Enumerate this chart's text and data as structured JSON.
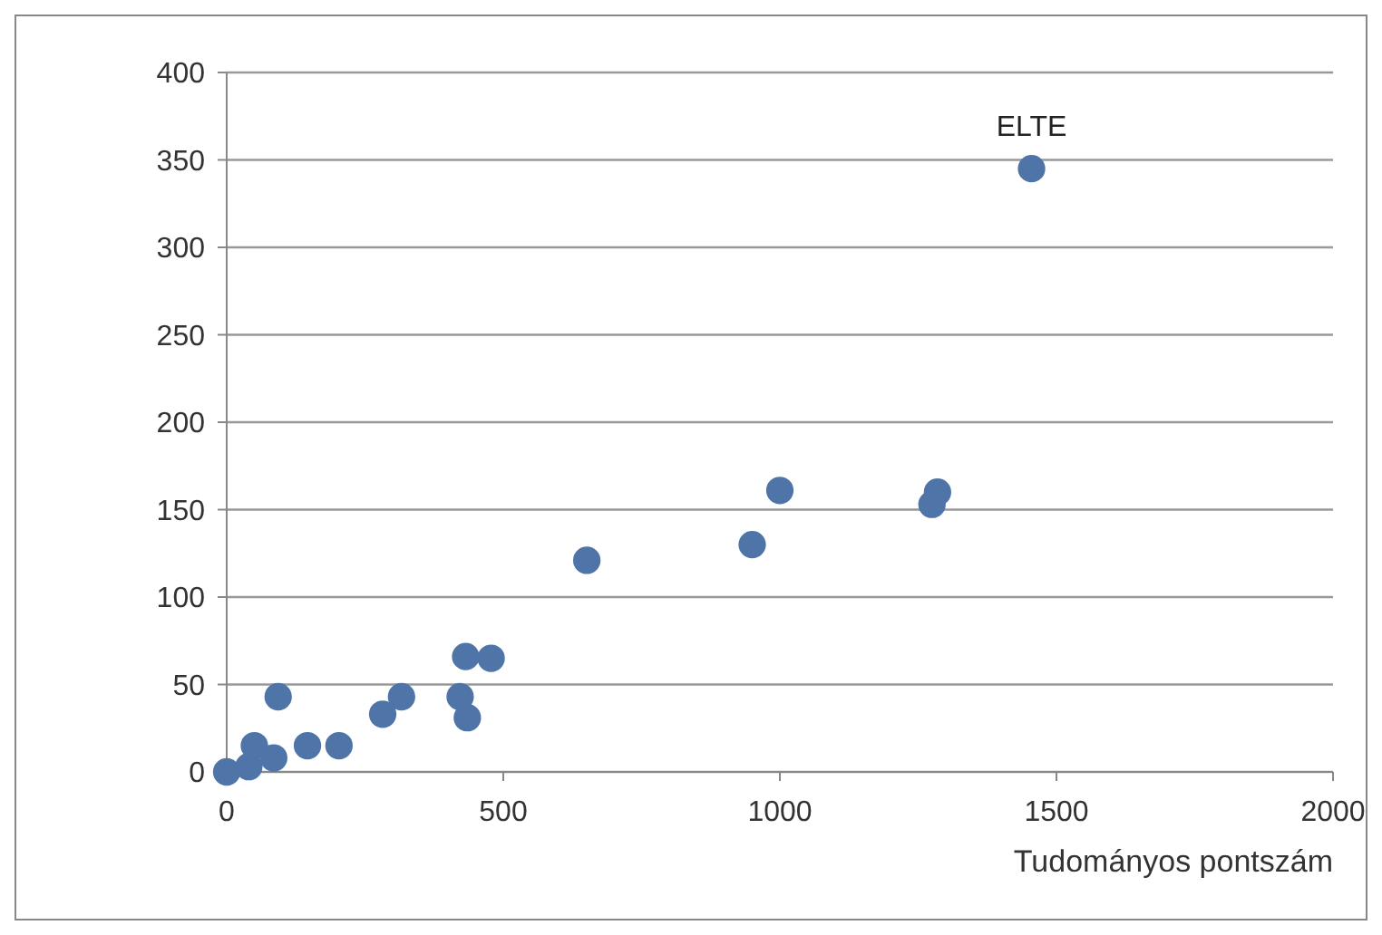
{
  "chart_data": {
    "type": "scatter",
    "xlabel": "Tudományos pontszám",
    "x": [
      1455,
      1000,
      1285,
      1275,
      950,
      651,
      432,
      478,
      422,
      435,
      316,
      282,
      203,
      146,
      93,
      0,
      40,
      50,
      85
    ],
    "values": [
      345,
      161,
      160,
      153,
      130,
      121,
      66,
      65,
      43,
      31,
      43,
      33,
      15,
      15,
      43,
      0,
      3,
      15,
      8
    ],
    "color": "#4f74a8",
    "marker": "circle",
    "xlim": [
      0,
      2000
    ],
    "ylim": [
      0,
      400
    ],
    "xticks": [
      0,
      500,
      1000,
      1500,
      2000
    ],
    "yticks": [
      0,
      50,
      100,
      150,
      200,
      250,
      300,
      350,
      400
    ],
    "grid": "y",
    "annotations": [
      {
        "text": "ELTE",
        "x": 1455,
        "y": 345
      }
    ]
  }
}
